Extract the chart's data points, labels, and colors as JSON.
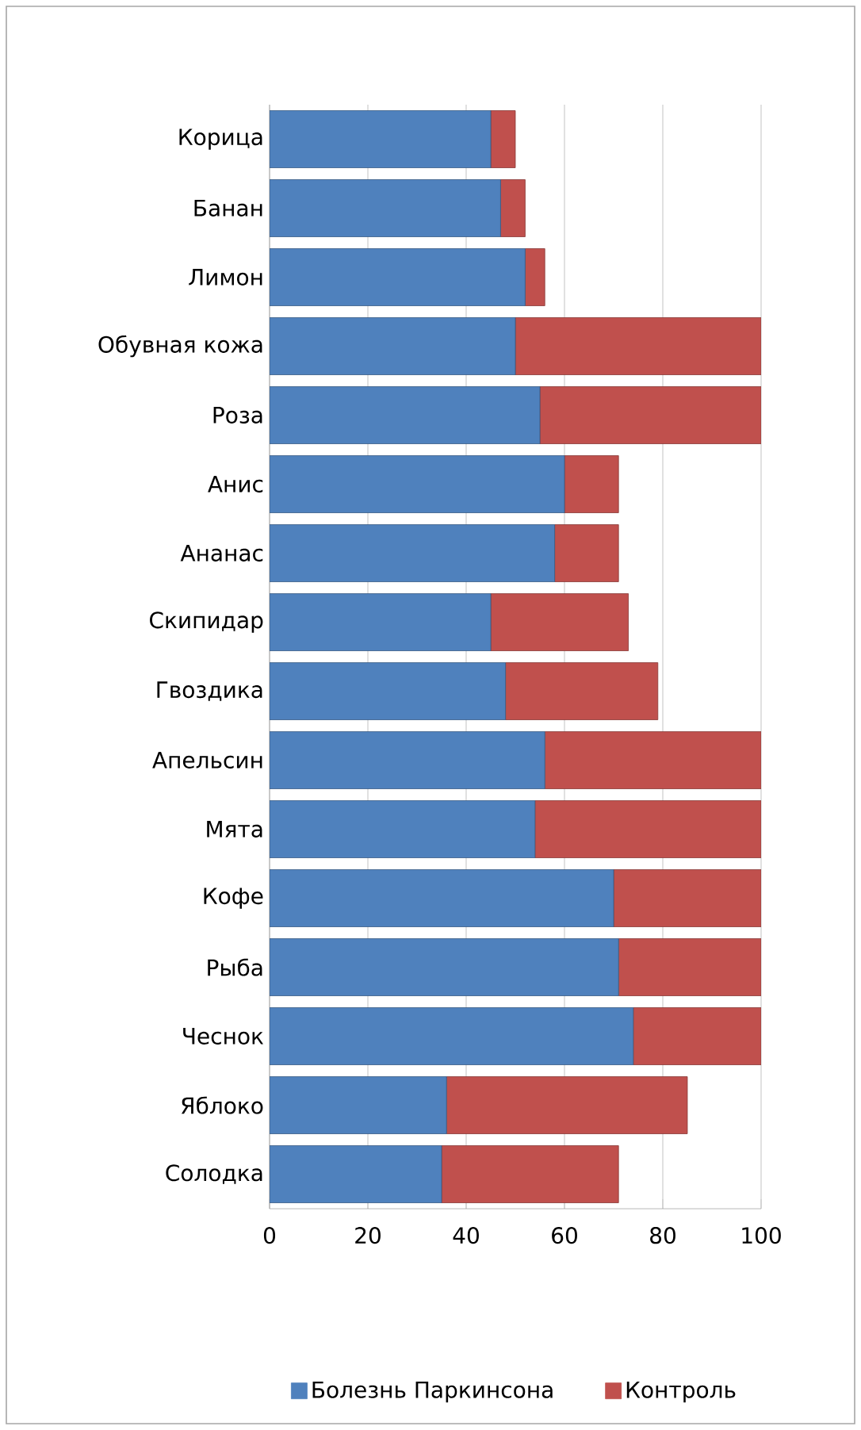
{
  "chart_data": {
    "type": "bar",
    "orientation": "horizontal",
    "stacked": true,
    "categories": [
      "Корица",
      "Банан",
      "Лимон",
      "Обувная кожа",
      "Роза",
      "Анис",
      "Ананас",
      "Скипидар",
      "Гвоздика",
      "Апельсин",
      "Мята",
      "Кофе",
      "Рыба",
      "Чеснок",
      "Яблоко",
      "Солодка"
    ],
    "series": [
      {
        "name": "Болезнь Паркинсона",
        "color": "#4f81bd",
        "values": [
          45,
          47,
          52,
          50,
          55,
          60,
          58,
          45,
          48,
          56,
          54,
          70,
          71,
          74,
          36,
          35
        ]
      },
      {
        "name": "Контроль",
        "color": "#c0504d",
        "values": [
          5,
          5,
          4,
          50,
          45,
          11,
          13,
          28,
          31,
          44,
          46,
          30,
          29,
          26,
          49,
          36
        ]
      }
    ],
    "xlim": [
      0,
      100
    ],
    "xticks": [
      0,
      20,
      40,
      60,
      80,
      100
    ],
    "grid": "x",
    "legend": "bottom"
  }
}
